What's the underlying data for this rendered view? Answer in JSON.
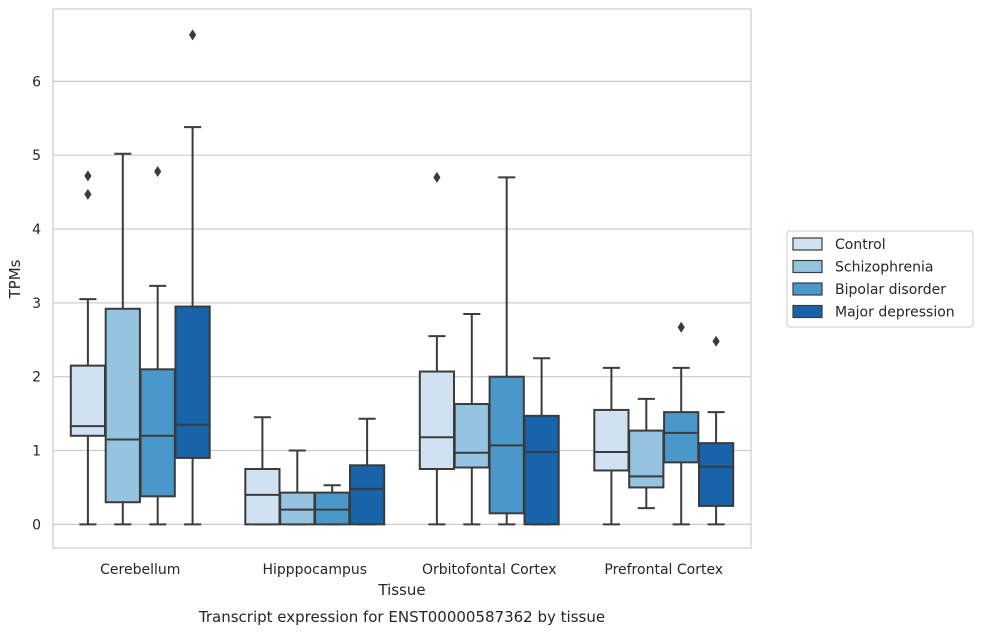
{
  "chart_data": {
    "type": "boxplot",
    "caption": "Transcript expression for ENST00000587362 by tissue",
    "xlabel": "Tissue",
    "ylabel": "TPMs",
    "ylim": [
      -0.32,
      6.98
    ],
    "yticks": [
      0,
      1,
      2,
      3,
      4,
      5,
      6
    ],
    "grid": true,
    "legend_position": "right",
    "categories": [
      "Cerebellum",
      "Hipppocampus",
      "Orbitofontal Cortex",
      "Prefrontal Cortex"
    ],
    "series": [
      {
        "name": "Control",
        "color": "#d0e1f2",
        "boxes": [
          {
            "whislo": 0.0,
            "q1": 1.2,
            "med": 1.33,
            "q3": 2.15,
            "whishi": 3.05,
            "fliers": [
              4.47,
              4.72
            ]
          },
          {
            "whislo": 0.0,
            "q1": 0.0,
            "med": 0.4,
            "q3": 0.75,
            "whishi": 1.45,
            "fliers": []
          },
          {
            "whislo": 0.0,
            "q1": 0.75,
            "med": 1.18,
            "q3": 2.07,
            "whishi": 2.55,
            "fliers": [
              4.7
            ]
          },
          {
            "whislo": 0.0,
            "q1": 0.73,
            "med": 0.98,
            "q3": 1.55,
            "whishi": 2.12,
            "fliers": []
          }
        ]
      },
      {
        "name": "Schizophrenia",
        "color": "#94c4df",
        "boxes": [
          {
            "whislo": 0.0,
            "q1": 0.3,
            "med": 1.15,
            "q3": 2.92,
            "whishi": 5.02,
            "fliers": []
          },
          {
            "whislo": 0.0,
            "q1": 0.0,
            "med": 0.2,
            "q3": 0.43,
            "whishi": 1.0,
            "fliers": []
          },
          {
            "whislo": 0.0,
            "q1": 0.77,
            "med": 0.97,
            "q3": 1.63,
            "whishi": 2.85,
            "fliers": []
          },
          {
            "whislo": 0.22,
            "q1": 0.5,
            "med": 0.65,
            "q3": 1.27,
            "whishi": 1.7,
            "fliers": []
          }
        ]
      },
      {
        "name": "Bipolar disorder",
        "color": "#4a98c9",
        "boxes": [
          {
            "whislo": 0.0,
            "q1": 0.38,
            "med": 1.2,
            "q3": 2.1,
            "whishi": 3.23,
            "fliers": [
              4.78
            ]
          },
          {
            "whislo": 0.0,
            "q1": 0.0,
            "med": 0.2,
            "q3": 0.43,
            "whishi": 0.53,
            "fliers": []
          },
          {
            "whislo": 0.0,
            "q1": 0.15,
            "med": 1.07,
            "q3": 2.0,
            "whishi": 4.7,
            "fliers": []
          },
          {
            "whislo": 0.0,
            "q1": 0.84,
            "med": 1.24,
            "q3": 1.52,
            "whishi": 2.12,
            "fliers": [
              2.67
            ]
          }
        ]
      },
      {
        "name": "Major depression",
        "color": "#1764ab",
        "boxes": [
          {
            "whislo": 0.0,
            "q1": 0.9,
            "med": 1.35,
            "q3": 2.95,
            "whishi": 5.38,
            "fliers": [
              6.63
            ]
          },
          {
            "whislo": 0.0,
            "q1": 0.0,
            "med": 0.48,
            "q3": 0.8,
            "whishi": 1.43,
            "fliers": []
          },
          {
            "whislo": 0.0,
            "q1": 0.0,
            "med": 0.98,
            "q3": 1.47,
            "whishi": 2.25,
            "fliers": []
          },
          {
            "whislo": 0.0,
            "q1": 0.25,
            "med": 0.78,
            "q3": 1.1,
            "whishi": 1.52,
            "fliers": [
              2.48
            ]
          }
        ]
      }
    ]
  }
}
